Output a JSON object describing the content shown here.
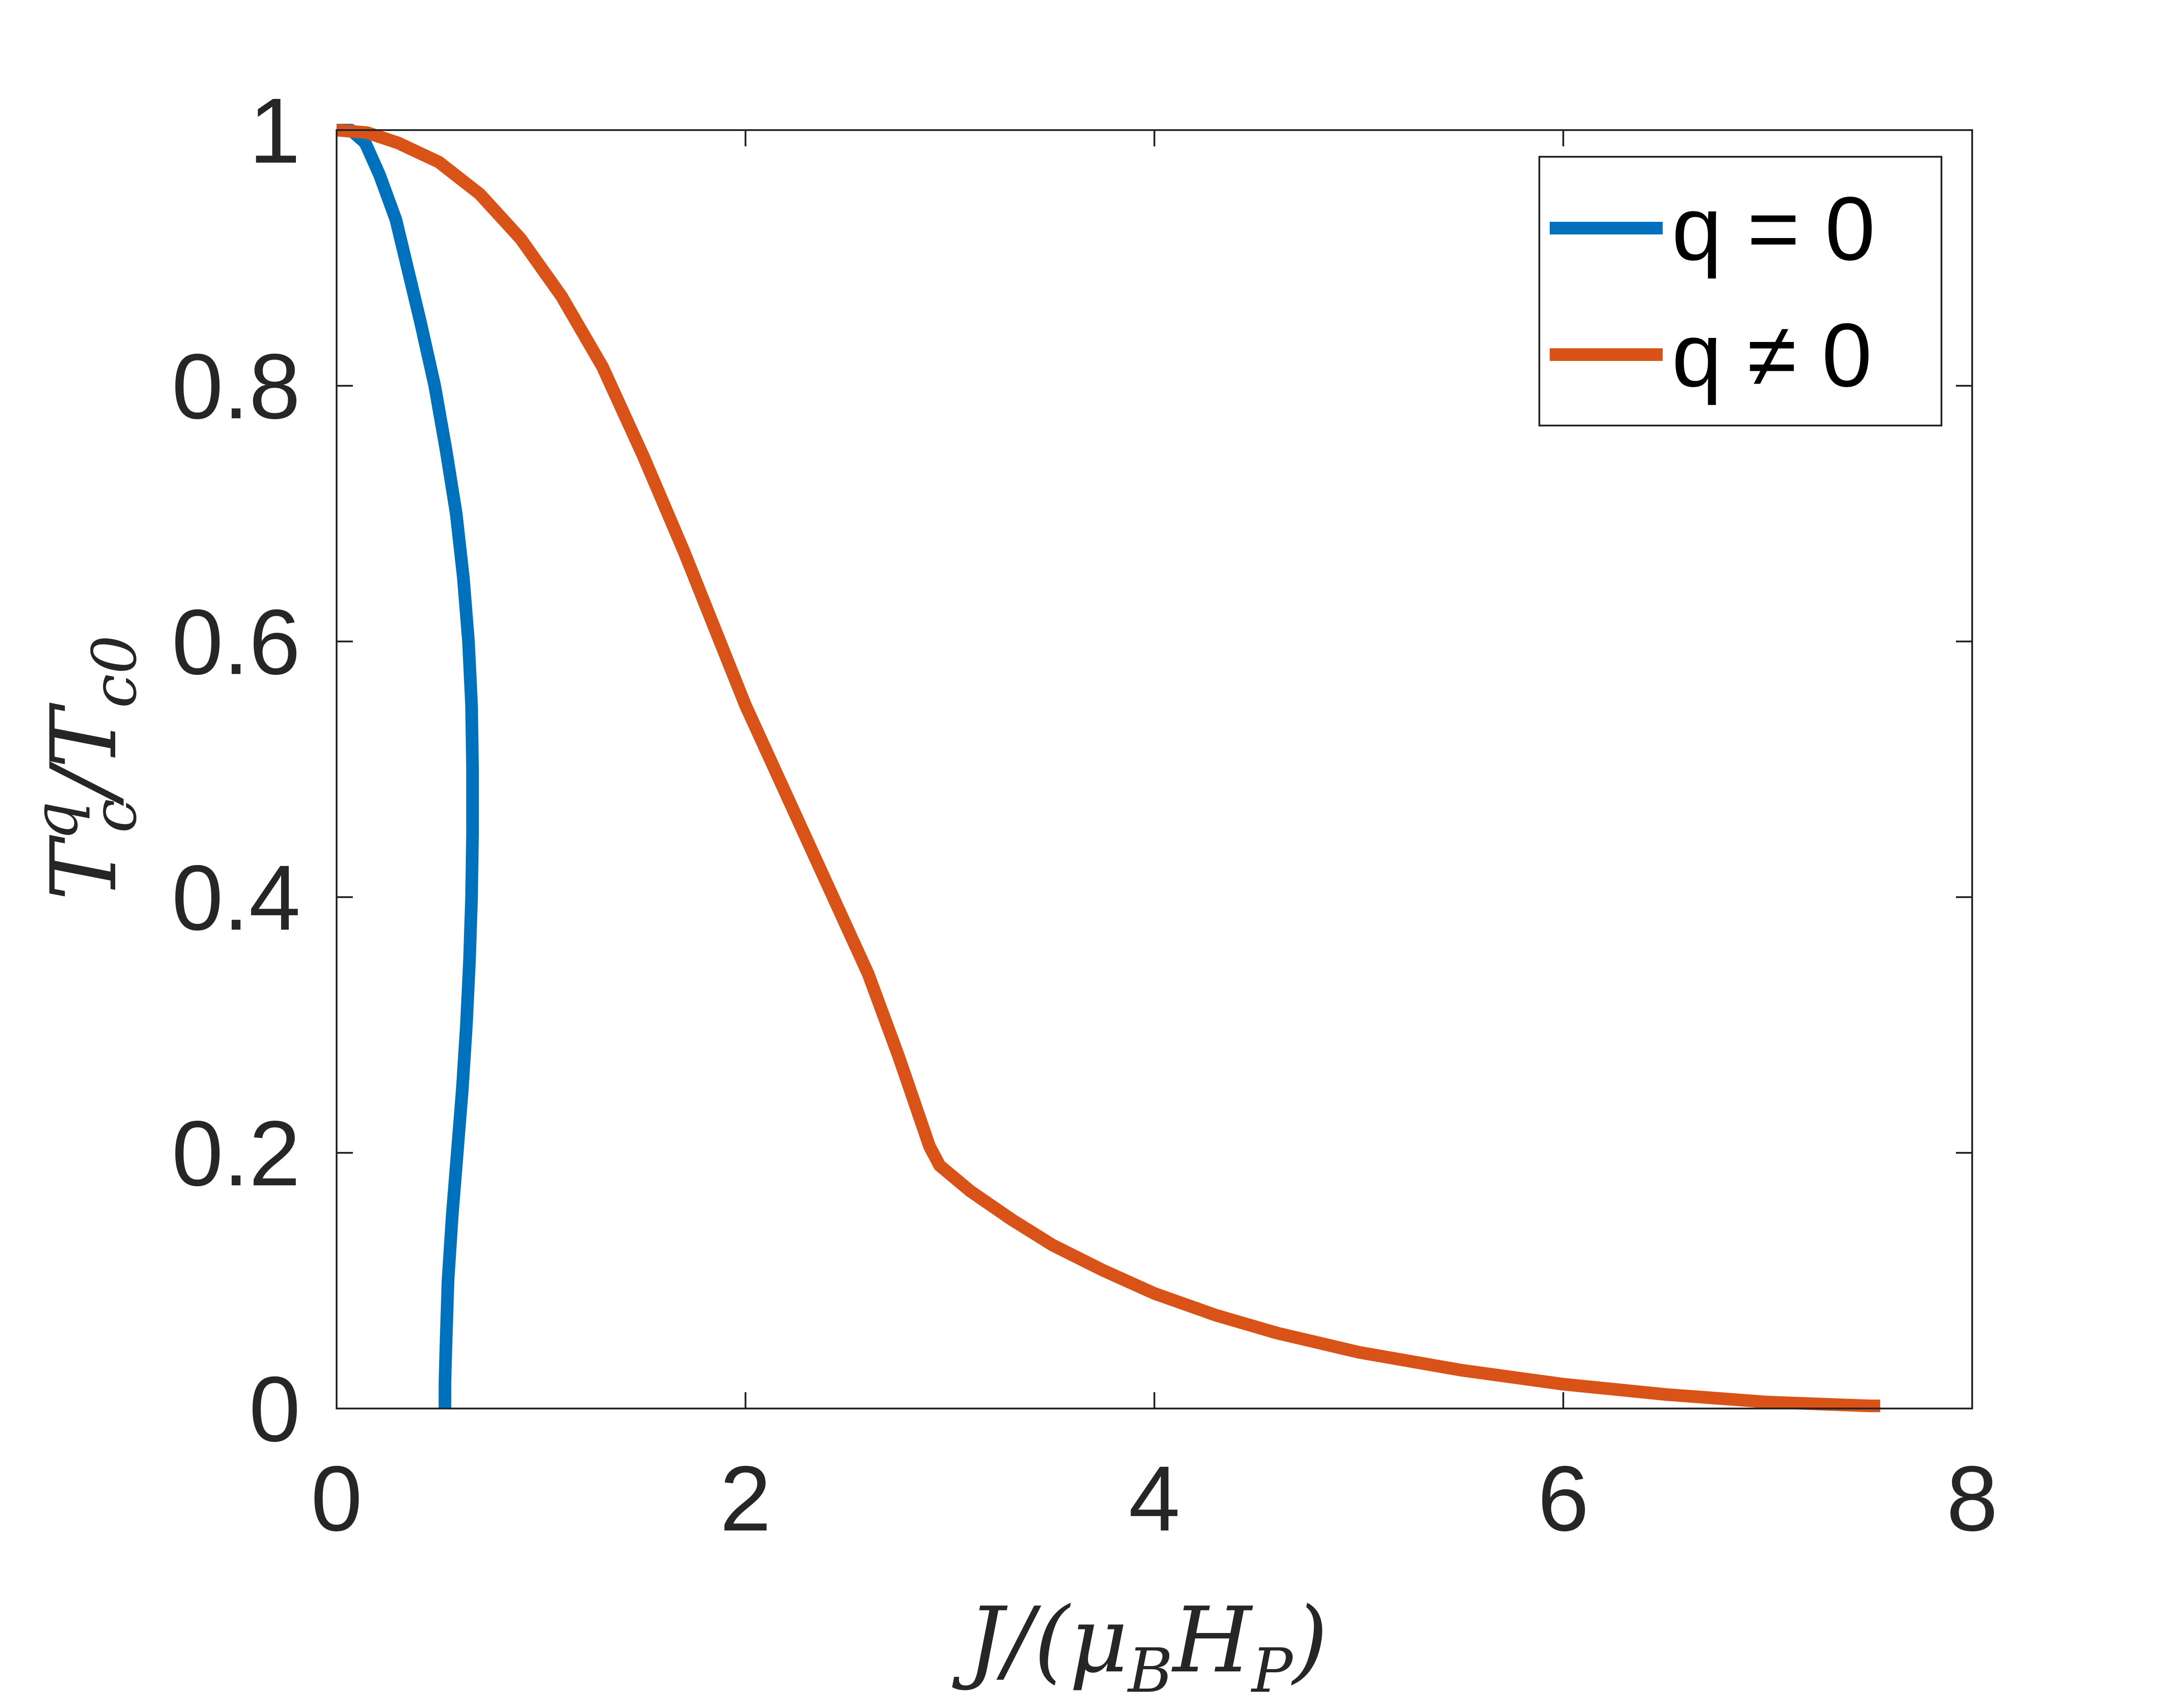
{
  "chart_data": {
    "type": "line",
    "xlabel": {
      "base": "J/(μ",
      "sub1": "B",
      "mid": "H",
      "sub2": "P",
      "end": ")"
    },
    "ylabel": {
      "base": "T",
      "sup": "q",
      "sub": "c",
      "mid": "/T",
      "sub2": "c0"
    },
    "xlim": [
      0,
      8
    ],
    "ylim": [
      0,
      1
    ],
    "xticks": [
      0,
      2,
      4,
      6,
      8
    ],
    "yticks": [
      0,
      0.2,
      0.4,
      0.6,
      0.8,
      1
    ],
    "grid": false,
    "legend_position": "top-right",
    "series": [
      {
        "name": "q = 0",
        "color": "#0072BD",
        "points": [
          [
            0.53,
            0
          ],
          [
            0.53,
            0.02
          ],
          [
            0.535,
            0.05
          ],
          [
            0.545,
            0.1
          ],
          [
            0.565,
            0.15
          ],
          [
            0.59,
            0.2
          ],
          [
            0.615,
            0.25
          ],
          [
            0.635,
            0.3
          ],
          [
            0.65,
            0.35
          ],
          [
            0.66,
            0.4
          ],
          [
            0.665,
            0.45
          ],
          [
            0.665,
            0.5
          ],
          [
            0.66,
            0.55
          ],
          [
            0.645,
            0.6
          ],
          [
            0.62,
            0.65
          ],
          [
            0.585,
            0.7
          ],
          [
            0.535,
            0.75
          ],
          [
            0.48,
            0.8
          ],
          [
            0.41,
            0.85
          ],
          [
            0.35,
            0.89
          ],
          [
            0.29,
            0.93
          ],
          [
            0.21,
            0.965
          ],
          [
            0.14,
            0.99
          ],
          [
            0.07,
            1.0
          ],
          [
            0.0,
            1.0
          ]
        ]
      },
      {
        "name": "q ≠ 0",
        "color": "#D95319",
        "points": [
          [
            0.0,
            1.0
          ],
          [
            0.15,
            0.998
          ],
          [
            0.3,
            0.99
          ],
          [
            0.5,
            0.975
          ],
          [
            0.7,
            0.95
          ],
          [
            0.9,
            0.915
          ],
          [
            1.1,
            0.87
          ],
          [
            1.3,
            0.815
          ],
          [
            1.5,
            0.745
          ],
          [
            1.7,
            0.67
          ],
          [
            1.85,
            0.61
          ],
          [
            2.0,
            0.55
          ],
          [
            2.2,
            0.48
          ],
          [
            2.4,
            0.41
          ],
          [
            2.6,
            0.34
          ],
          [
            2.75,
            0.275
          ],
          [
            2.9,
            0.205
          ],
          [
            2.95,
            0.19
          ],
          [
            3.1,
            0.17
          ],
          [
            3.3,
            0.148
          ],
          [
            3.5,
            0.128
          ],
          [
            3.75,
            0.108
          ],
          [
            4.0,
            0.09
          ],
          [
            4.3,
            0.073
          ],
          [
            4.6,
            0.059
          ],
          [
            5.0,
            0.044
          ],
          [
            5.5,
            0.03
          ],
          [
            6.0,
            0.019
          ],
          [
            6.5,
            0.011
          ],
          [
            7.0,
            0.005
          ],
          [
            7.5,
            0.002
          ],
          [
            7.55,
            0.002
          ]
        ]
      }
    ]
  }
}
